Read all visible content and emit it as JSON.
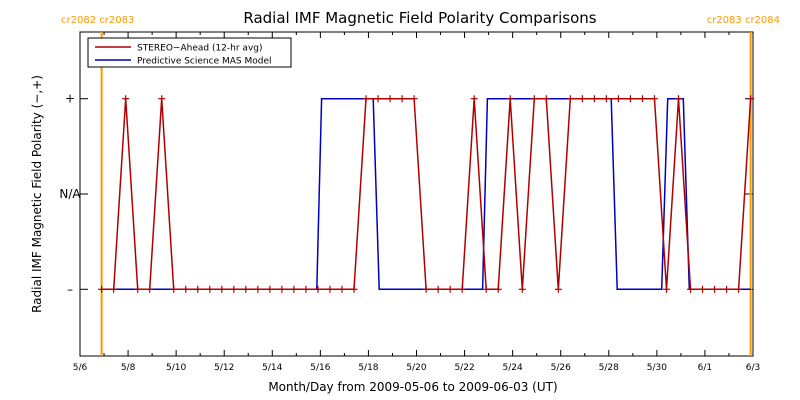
{
  "chart_data": {
    "type": "line",
    "title": "Radial IMF Magnetic Field Polarity Comparisons",
    "xlabel": "Month/Day from 2009-05-06 to 2009-06-03 (UT)",
    "ylabel": "Radial IMF Magnetic Field Polarity (−,+)",
    "xlim": [
      0,
      28
    ],
    "ylim": [
      -1.7,
      1.7
    ],
    "x_ticks": [
      {
        "x": 0,
        "label": "5/6"
      },
      {
        "x": 2,
        "label": "5/8"
      },
      {
        "x": 4,
        "label": "5/10"
      },
      {
        "x": 6,
        "label": "5/12"
      },
      {
        "x": 8,
        "label": "5/14"
      },
      {
        "x": 10,
        "label": "5/16"
      },
      {
        "x": 12,
        "label": "5/18"
      },
      {
        "x": 14,
        "label": "5/20"
      },
      {
        "x": 16,
        "label": "5/22"
      },
      {
        "x": 18,
        "label": "5/24"
      },
      {
        "x": 20,
        "label": "5/26"
      },
      {
        "x": 22,
        "label": "5/28"
      },
      {
        "x": 24,
        "label": "5/30"
      },
      {
        "x": 26,
        "label": "6/1"
      },
      {
        "x": 28,
        "label": "6/3"
      }
    ],
    "y_levels": [
      {
        "y": 1,
        "label": "+"
      },
      {
        "y": 0,
        "label": "N/A"
      },
      {
        "y": -1,
        "label": "–"
      }
    ],
    "rotation_markers": [
      {
        "x": 0.9,
        "label": "cr2082 cr2083"
      },
      {
        "x": 27.9,
        "label": "cr2083 cr2084"
      }
    ],
    "legend_position": "top-left",
    "series": [
      {
        "name": "STEREO−Ahead (12-hr avg)",
        "color": "#b00000",
        "markers": true,
        "points": [
          [
            0.9,
            -1
          ],
          [
            1.4,
            -1
          ],
          [
            1.9,
            1
          ],
          [
            2.4,
            -1
          ],
          [
            2.9,
            -1
          ],
          [
            3.4,
            1
          ],
          [
            3.9,
            -1
          ],
          [
            4.4,
            -1
          ],
          [
            4.9,
            -1
          ],
          [
            5.4,
            -1
          ],
          [
            5.9,
            -1
          ],
          [
            6.4,
            -1
          ],
          [
            6.9,
            -1
          ],
          [
            7.4,
            -1
          ],
          [
            7.9,
            -1
          ],
          [
            8.4,
            -1
          ],
          [
            8.9,
            -1
          ],
          [
            9.4,
            -1
          ],
          [
            9.9,
            -1
          ],
          [
            10.4,
            -1
          ],
          [
            10.9,
            -1
          ],
          [
            11.4,
            -1
          ],
          [
            11.9,
            1
          ],
          [
            12.4,
            1
          ],
          [
            12.9,
            1
          ],
          [
            13.4,
            1
          ],
          [
            13.9,
            1
          ],
          [
            14.4,
            -1
          ],
          [
            14.9,
            -1
          ],
          [
            15.4,
            -1
          ],
          [
            15.9,
            -1
          ],
          [
            16.4,
            1
          ],
          [
            16.9,
            -1
          ],
          [
            17.4,
            -1
          ],
          [
            17.9,
            1
          ],
          [
            18.4,
            -1
          ],
          [
            18.9,
            1
          ],
          [
            19.4,
            1
          ],
          [
            19.9,
            -1
          ],
          [
            20.4,
            1
          ],
          [
            20.9,
            1
          ],
          [
            21.4,
            1
          ],
          [
            21.9,
            1
          ],
          [
            22.4,
            1
          ],
          [
            22.9,
            1
          ],
          [
            23.4,
            1
          ],
          [
            23.9,
            1
          ],
          [
            24.4,
            -1
          ],
          [
            24.9,
            1
          ],
          [
            25.4,
            -1
          ],
          [
            25.9,
            -1
          ],
          [
            26.4,
            -1
          ],
          [
            26.9,
            -1
          ],
          [
            27.4,
            -1
          ],
          [
            27.9,
            1
          ]
        ]
      },
      {
        "name": "Predictive Science MAS Model",
        "color": "#0000c0",
        "markers": false,
        "points": [
          [
            0.9,
            -1
          ],
          [
            9.85,
            -1
          ],
          [
            10.05,
            1
          ],
          [
            12.2,
            1
          ],
          [
            12.45,
            -1
          ],
          [
            16.75,
            -1
          ],
          [
            16.95,
            1
          ],
          [
            22.1,
            1
          ],
          [
            22.35,
            -1
          ],
          [
            24.2,
            -1
          ],
          [
            24.45,
            1
          ],
          [
            25.1,
            1
          ],
          [
            25.35,
            -1
          ],
          [
            27.9,
            -1
          ]
        ]
      }
    ]
  }
}
